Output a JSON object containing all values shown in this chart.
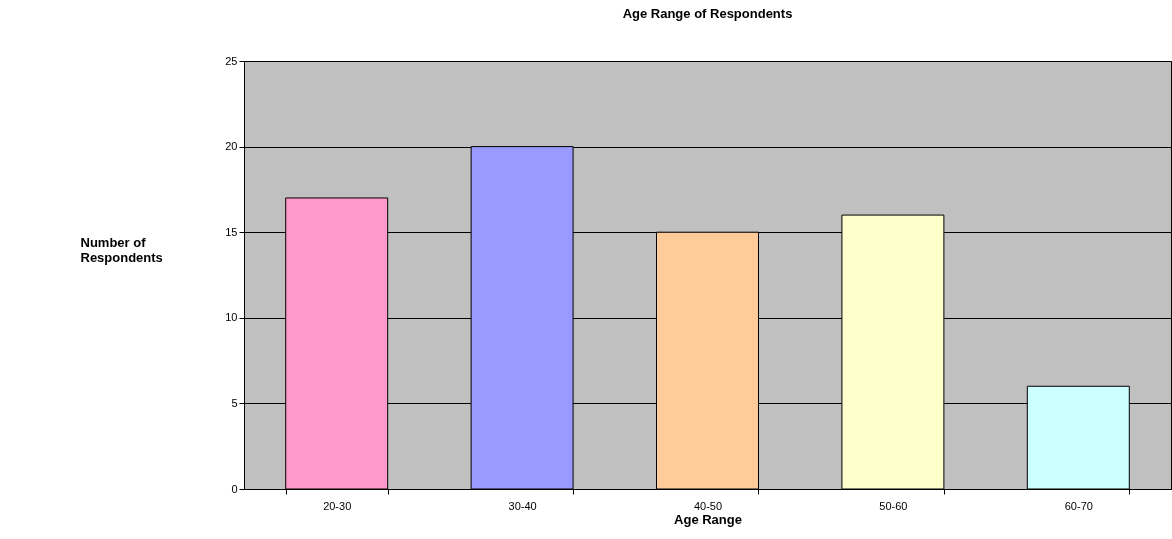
{
  "chart_data": {
    "type": "bar",
    "title": "Age Range of Respondents",
    "xlabel": "Age Range",
    "ylabel": "Number of Respondents",
    "categories": [
      "20-30",
      "30-40",
      "40-50",
      "50-60",
      "60-70"
    ],
    "values": [
      17,
      20,
      15,
      16,
      6
    ],
    "colors": [
      "#ff99cc",
      "#9999ff",
      "#ffcc99",
      "#ffffcc",
      "#ccffff"
    ],
    "ylim": [
      0,
      25
    ],
    "yticks": [
      0,
      5,
      10,
      15,
      20,
      25
    ],
    "grid": "y"
  }
}
